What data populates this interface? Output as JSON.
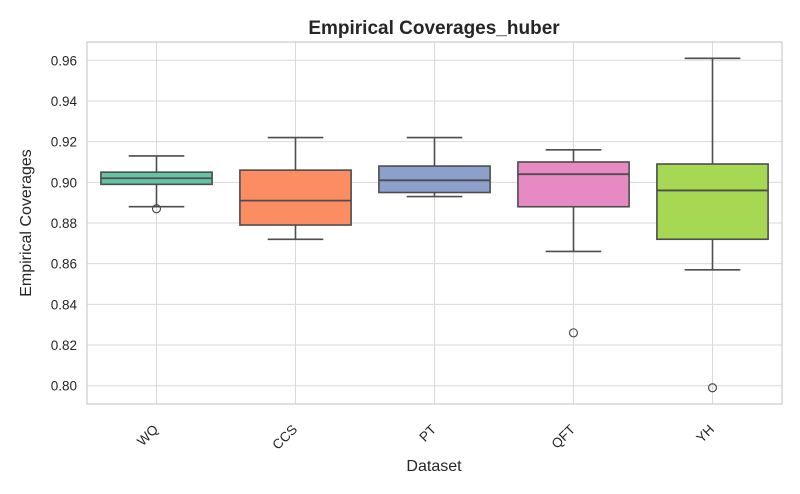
{
  "chart_data": {
    "type": "box",
    "title": "Empirical Coverages_huber",
    "xlabel": "Dataset",
    "ylabel": "Empirical Coverages",
    "ylim": [
      0.791,
      0.969
    ],
    "yticks": [
      0.8,
      0.82,
      0.84,
      0.86,
      0.88,
      0.9,
      0.92,
      0.94,
      0.96
    ],
    "grid": true,
    "categories": [
      "WQ",
      "CCS",
      "PT",
      "QFT",
      "YH"
    ],
    "boxes": [
      {
        "name": "WQ",
        "color": "#66c2a5",
        "whisker_low": 0.888,
        "q1": 0.899,
        "median": 0.902,
        "q3": 0.905,
        "whisker_high": 0.913,
        "outliers": [
          0.887
        ]
      },
      {
        "name": "CCS",
        "color": "#fc8d62",
        "whisker_low": 0.872,
        "q1": 0.879,
        "median": 0.891,
        "q3": 0.906,
        "whisker_high": 0.922,
        "outliers": []
      },
      {
        "name": "PT",
        "color": "#8da0cb",
        "whisker_low": 0.893,
        "q1": 0.895,
        "median": 0.901,
        "q3": 0.908,
        "whisker_high": 0.922,
        "outliers": []
      },
      {
        "name": "QFT",
        "color": "#e78ac3",
        "whisker_low": 0.866,
        "q1": 0.888,
        "median": 0.904,
        "q3": 0.91,
        "whisker_high": 0.916,
        "outliers": [
          0.826
        ]
      },
      {
        "name": "YH",
        "color": "#a6d854",
        "whisker_low": 0.857,
        "q1": 0.872,
        "median": 0.896,
        "q3": 0.909,
        "whisker_high": 0.961,
        "outliers": [
          0.799
        ]
      }
    ]
  }
}
